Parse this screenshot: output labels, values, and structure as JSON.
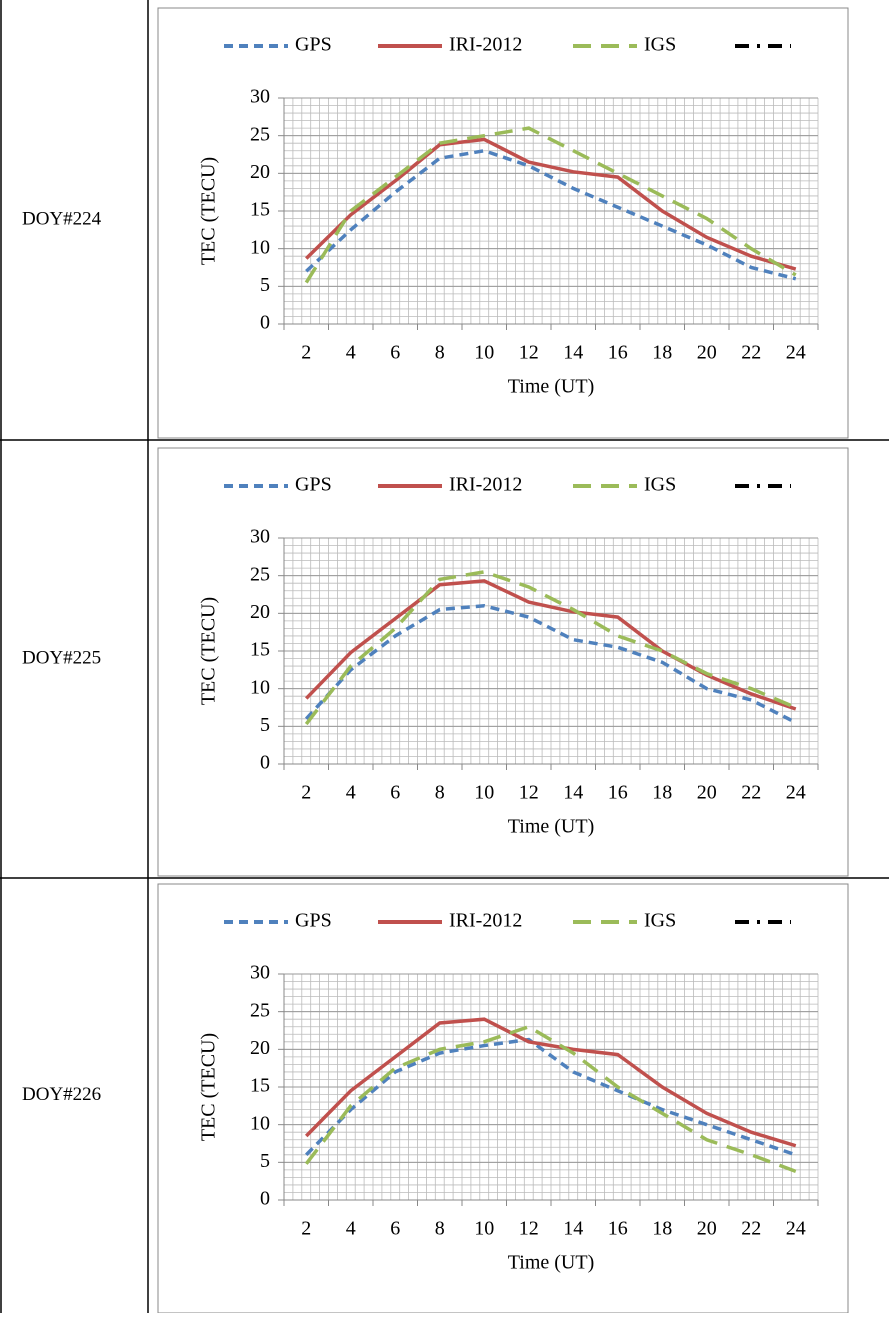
{
  "chart_data": [
    {
      "type": "line",
      "row_label": "DOY#224",
      "x_label": "Time (UT)",
      "y_label": "TEC (TECU)",
      "categories": [
        "2",
        "4",
        "6",
        "8",
        "10",
        "12",
        "14",
        "16",
        "18",
        "20",
        "22",
        "24"
      ],
      "ylim": [
        0,
        30
      ],
      "yticks": [
        0,
        5,
        10,
        15,
        20,
        25,
        30
      ],
      "grid": true,
      "series": [
        {
          "name": "GPS",
          "color": "#4f81bd",
          "line_style": "dash",
          "values": [
            7,
            12.5,
            17.5,
            22,
            23,
            21,
            18,
            15.5,
            13,
            10.5,
            7.5,
            6
          ]
        },
        {
          "name": "IRI-2012",
          "color": "#c0504d",
          "line_style": "solid",
          "values": [
            8.7,
            14.5,
            19,
            23.8,
            24.5,
            21.5,
            20.2,
            19.5,
            15,
            11.5,
            9,
            7.3
          ]
        },
        {
          "name": "IGS",
          "color": "#9bbb59",
          "line_style": "longdash",
          "values": [
            5.5,
            15,
            19.5,
            24,
            25,
            26,
            23,
            20,
            17,
            14,
            10,
            6.5
          ]
        },
        {
          "color": "#000000",
          "line_style": "dashdot",
          "values": [
            null,
            null,
            null,
            null,
            null,
            null,
            null,
            null,
            null,
            null,
            null,
            null
          ]
        }
      ]
    },
    {
      "type": "line",
      "row_label": "DOY#225",
      "x_label": "Time (UT)",
      "y_label": "TEC (TECU)",
      "categories": [
        "2",
        "4",
        "6",
        "8",
        "10",
        "12",
        "14",
        "16",
        "18",
        "20",
        "22",
        "24"
      ],
      "ylim": [
        0,
        30
      ],
      "yticks": [
        0,
        5,
        10,
        15,
        20,
        25,
        30
      ],
      "grid": true,
      "series": [
        {
          "name": "GPS",
          "color": "#4f81bd",
          "line_style": "dash",
          "values": [
            6,
            12.5,
            17,
            20.5,
            21,
            19.5,
            16.5,
            15.5,
            13.5,
            10,
            8.5,
            5.5
          ]
        },
        {
          "name": "IRI-2012",
          "color": "#c0504d",
          "line_style": "solid",
          "values": [
            8.7,
            14.8,
            19.3,
            23.8,
            24.3,
            21.5,
            20.2,
            19.5,
            15,
            11.8,
            9.3,
            7.3
          ]
        },
        {
          "name": "IGS",
          "color": "#9bbb59",
          "line_style": "longdash",
          "values": [
            5.3,
            13,
            18,
            24.5,
            25.5,
            23.5,
            20.5,
            17,
            15,
            12,
            10,
            7.5
          ]
        },
        {
          "color": "#000000",
          "line_style": "dashdot",
          "values": [
            null,
            null,
            null,
            null,
            null,
            null,
            null,
            null,
            null,
            null,
            null,
            null
          ]
        }
      ]
    },
    {
      "type": "line",
      "row_label": "DOY#226",
      "x_label": "Time (UT)",
      "y_label": "TEC (TECU)",
      "categories": [
        "2",
        "4",
        "6",
        "8",
        "10",
        "12",
        "14",
        "16",
        "18",
        "20",
        "22",
        "24"
      ],
      "ylim": [
        0,
        30
      ],
      "yticks": [
        0,
        5,
        10,
        15,
        20,
        25,
        30
      ],
      "grid": true,
      "series": [
        {
          "name": "GPS",
          "color": "#4f81bd",
          "line_style": "dash",
          "values": [
            6,
            12,
            17,
            19.5,
            20.5,
            21.3,
            17,
            14.5,
            12,
            10,
            8,
            6
          ]
        },
        {
          "name": "IRI-2012",
          "color": "#c0504d",
          "line_style": "solid",
          "values": [
            8.5,
            14.5,
            19,
            23.5,
            24,
            21,
            20,
            19.3,
            15,
            11.5,
            9,
            7.2
          ]
        },
        {
          "name": "IGS",
          "color": "#9bbb59",
          "line_style": "longdash",
          "values": [
            4.8,
            12.5,
            17.5,
            20,
            21,
            23,
            19.5,
            15,
            11.5,
            8,
            6,
            3.8
          ]
        },
        {
          "color": "#000000",
          "line_style": "dashdot",
          "values": [
            null,
            null,
            null,
            null,
            null,
            null,
            null,
            null,
            null,
            null,
            null,
            null
          ]
        }
      ]
    }
  ]
}
